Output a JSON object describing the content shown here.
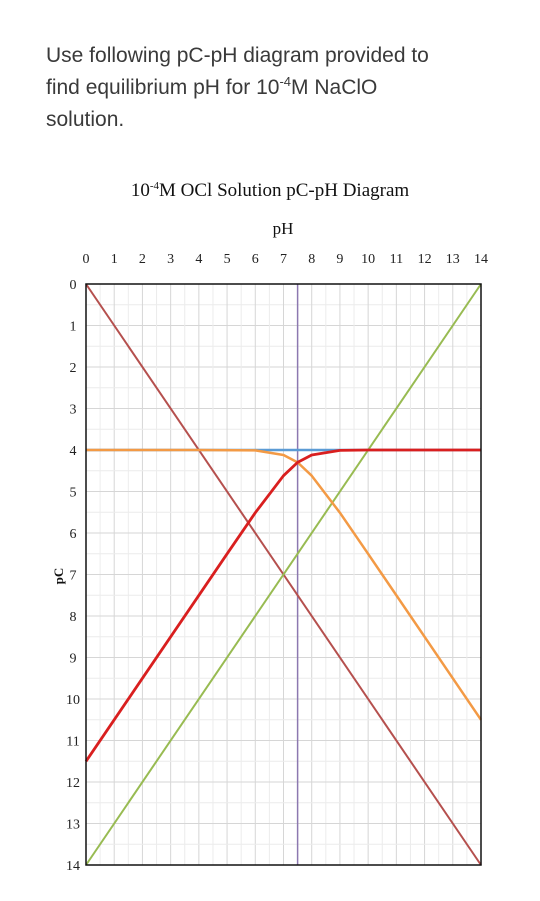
{
  "question": {
    "line1": "Use following pC-pH diagram provided to",
    "line2_pre": "find equilibrium pH for 10",
    "line2_sup": "-4",
    "line2_post": "M NaClO",
    "line3": "solution."
  },
  "chart_data": {
    "type": "line",
    "title_pre": "10",
    "title_sup": "-4",
    "title_post": "M OCl Solution pC-pH Diagram",
    "xlabel": "pH",
    "ylabel": "pC",
    "xlim": [
      0,
      14
    ],
    "ylim": [
      14,
      0
    ],
    "x_ticks": [
      "0",
      "1",
      "2",
      "3",
      "4",
      "5",
      "6",
      "7",
      "8",
      "9",
      "10",
      "11",
      "12",
      "13",
      "14"
    ],
    "y_ticks": [
      "0",
      "1",
      "2",
      "3",
      "4",
      "5",
      "6",
      "7",
      "8",
      "9",
      "10",
      "11",
      "12",
      "13",
      "14"
    ],
    "x_axis_position": "top",
    "grid": true,
    "pKa": 7.5,
    "total_pC": 4,
    "series": [
      {
        "color": "#b5504e",
        "x": [
          0,
          14
        ],
        "y": [
          0,
          14
        ]
      },
      {
        "color": "#98bb52",
        "x": [
          0,
          14
        ],
        "y": [
          14,
          0
        ]
      },
      {
        "color": "#5b9bd5",
        "x": [
          0,
          14
        ],
        "y": [
          4,
          4
        ]
      },
      {
        "color": "#f39a45",
        "x": [
          0,
          4,
          6,
          7,
          7.5,
          8,
          9,
          10,
          12,
          14
        ],
        "y": [
          4,
          4,
          4.01,
          4.12,
          4.3,
          4.62,
          5.51,
          6.5,
          8.5,
          10.5
        ]
      },
      {
        "color": "#d91f1f",
        "x": [
          0,
          2,
          4,
          5,
          6,
          7,
          7.5,
          8,
          9,
          10,
          14
        ],
        "y": [
          11.5,
          9.5,
          7.5,
          6.5,
          5.51,
          4.62,
          4.3,
          4.12,
          4.01,
          4,
          4
        ]
      }
    ],
    "vertical_line": {
      "x": 7.5,
      "color": "#8c78b0"
    }
  }
}
